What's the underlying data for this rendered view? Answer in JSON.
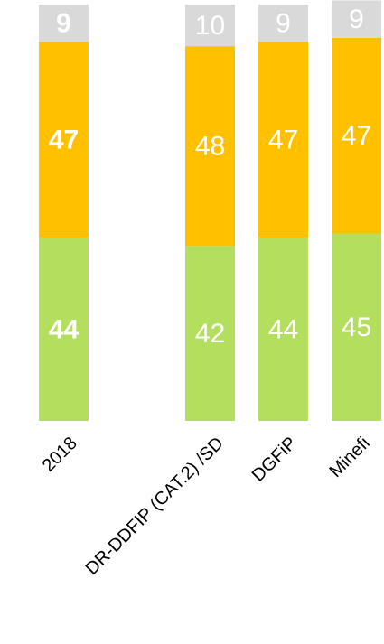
{
  "chart_data": {
    "type": "stacked_bar",
    "categories": [
      "2018",
      null,
      "DR-DDFIP (CAT.2) /SD",
      "DGFiP",
      "Minefi"
    ],
    "series": [
      {
        "name": "green",
        "color": "#b4de5e",
        "values": [
          44,
          null,
          42,
          44,
          45
        ]
      },
      {
        "name": "orange",
        "color": "#ffc000",
        "values": [
          47,
          null,
          48,
          47,
          47
        ]
      },
      {
        "name": "gray",
        "color": "#d9d9d9",
        "values": [
          9,
          null,
          10,
          9,
          9
        ]
      }
    ],
    "ylim": [
      0,
      100
    ]
  }
}
